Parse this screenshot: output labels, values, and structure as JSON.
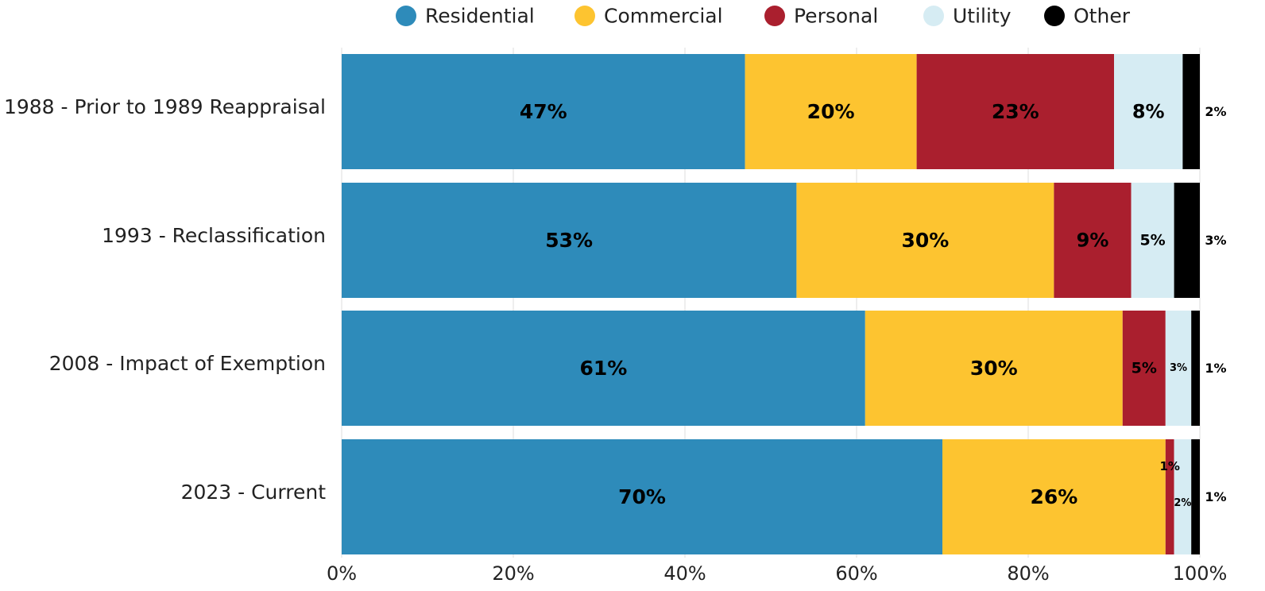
{
  "chart_data": {
    "type": "bar",
    "orientation": "horizontal",
    "stacked": true,
    "categories": [
      "1988 - Prior to 1989 Reappraisal",
      "1993 - Reclassification",
      "2008 - Impact of Exemption",
      "2023 - Current"
    ],
    "series": [
      {
        "name": "Residential",
        "color": "#2e8bba",
        "values": [
          47,
          53,
          61,
          70
        ],
        "labels": [
          "47%",
          "53%",
          "61%",
          "70%"
        ]
      },
      {
        "name": "Commercial",
        "color": "#fdc430",
        "values": [
          20,
          30,
          30,
          26
        ],
        "labels": [
          "20%",
          "30%",
          "30%",
          "26%"
        ]
      },
      {
        "name": "Personal",
        "color": "#aa1f2e",
        "values": [
          23,
          9,
          5,
          1
        ],
        "labels": [
          "23%",
          "9%",
          "5%",
          "1%"
        ]
      },
      {
        "name": "Utility",
        "color": "#d6ecf3",
        "values": [
          8,
          5,
          3,
          2
        ],
        "labels": [
          "8%",
          "5%",
          "3%",
          "2%"
        ]
      },
      {
        "name": "Other",
        "color": "#000000",
        "values": [
          2,
          3,
          1,
          1
        ],
        "labels": [
          "2%",
          "3%",
          "1%",
          "1%"
        ]
      }
    ],
    "xlim": [
      0,
      100
    ],
    "x_ticks": [
      "0%",
      "20%",
      "40%",
      "60%",
      "80%",
      "100%"
    ],
    "grid": true,
    "legend_position": "top"
  }
}
